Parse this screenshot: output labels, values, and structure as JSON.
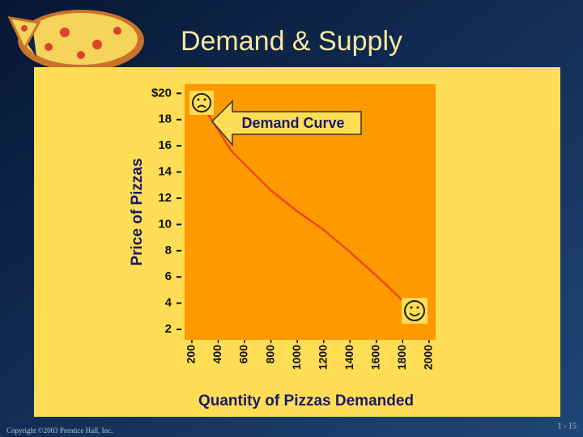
{
  "chart_data": {
    "type": "line",
    "title": "Demand & Supply",
    "xlabel": "Quantity of Pizzas Demanded",
    "ylabel": "Price of Pizzas",
    "annotation": "Demand Curve",
    "x": [
      300,
      500,
      800,
      1000,
      1200,
      1400,
      1600,
      1800,
      1900
    ],
    "values": [
      18.8,
      15.6,
      12.6,
      11.0,
      9.6,
      7.9,
      6.1,
      4.2,
      3.2
    ],
    "color": "#e84a1c",
    "xlim": [
      145,
      2050
    ],
    "xticks": [
      200,
      400,
      600,
      800,
      1000,
      1200,
      1400,
      1600,
      1800,
      2000
    ],
    "ylim": [
      1.2,
      20.7
    ],
    "yticks": [
      2,
      4,
      6,
      8,
      10,
      12,
      14,
      16,
      18,
      {
        "value": 20,
        "label": "$20"
      }
    ]
  },
  "footer": {
    "copyright": "Copyright ©2003 Prentice Hall, Inc.",
    "page": "1 - 15"
  }
}
